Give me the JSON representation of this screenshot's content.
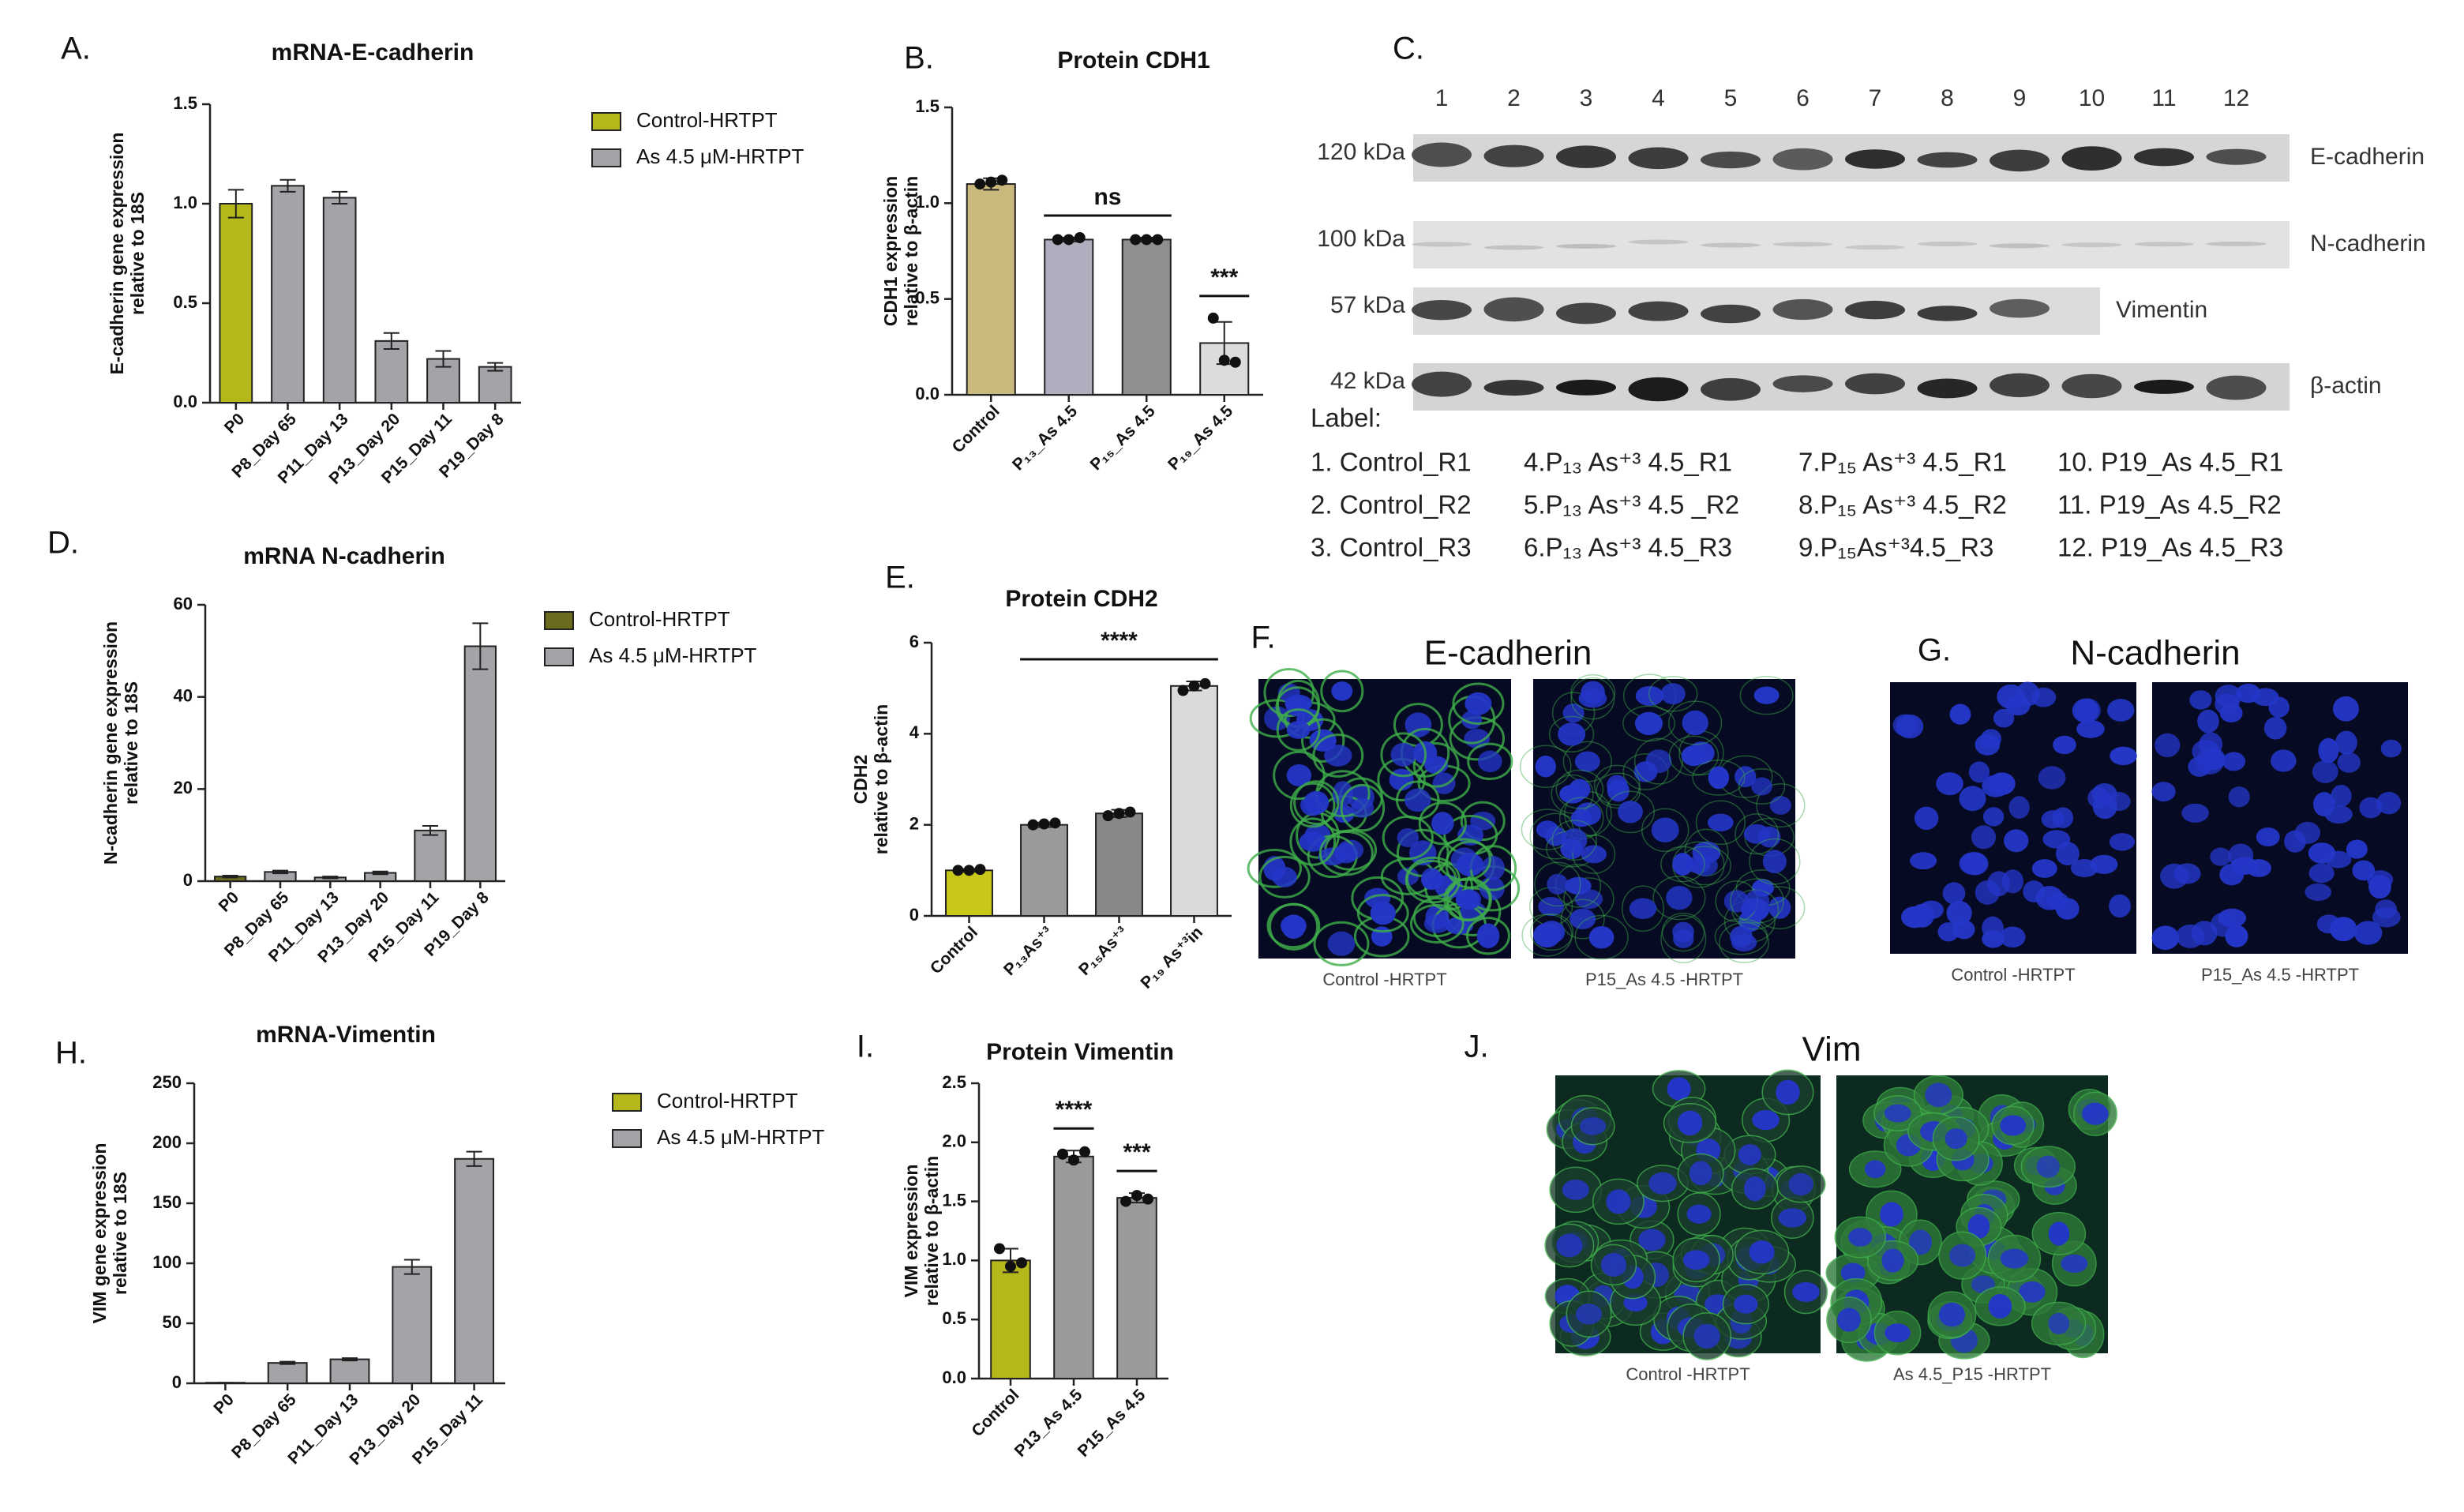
{
  "chart_data": [
    {
      "type": "bar",
      "panel_label": "A.",
      "title": "mRNA-E-cadherin",
      "y_label": [
        "E-cadherin gene expression",
        "relative to 18S"
      ],
      "categories": [
        "P0",
        "P8_Day 65",
        "P11_Day 13",
        "P13_Day 20",
        "P15_Day 11",
        "P19_Day 8"
      ],
      "values": [
        1.0,
        1.09,
        1.03,
        0.31,
        0.22,
        0.18
      ],
      "errors": [
        0.07,
        0.03,
        0.03,
        0.04,
        0.04,
        0.02
      ],
      "colors": [
        "#b5b81a",
        "#a3a3a8",
        "#a3a3a8",
        "#a3a3a8",
        "#a3a3a8",
        "#a3a3a8"
      ],
      "legend": [
        {
          "name": "Control-HRTPT",
          "color": "#b5b81a"
        },
        {
          "name": "As 4.5 μM-HRTPT",
          "color": "#a3a3a8"
        }
      ],
      "ylim": [
        0,
        1.5
      ],
      "yticks": [
        {
          "value": 0,
          "label": "0.0"
        },
        0.5,
        {
          "value": 1,
          "label": "1.0"
        },
        1.5
      ]
    },
    {
      "type": "bar",
      "panel_label": "B.",
      "title": "Protein CDH1",
      "y_label": [
        "CDH1 expression",
        "relative to β-actin"
      ],
      "categories": [
        "Control",
        "P₁₃_As 4.5",
        "P₁₅_As 4.5",
        "P₁₉_As 4.5"
      ],
      "values": [
        1.1,
        0.81,
        0.81,
        0.27
      ],
      "errors": [
        0.03,
        0.01,
        0.01,
        0.11
      ],
      "points": [
        [
          1.1,
          1.11,
          1.12
        ],
        [
          0.81,
          0.81,
          0.82
        ],
        [
          0.81,
          0.81,
          0.81
        ],
        [
          0.4,
          0.18,
          0.17
        ]
      ],
      "colors": [
        "#c9b97c",
        "#aeaebf",
        "#8f8f8f",
        "#dcdcdc"
      ],
      "annotations": [
        {
          "text": "ns",
          "span": [
            1,
            2
          ]
        },
        {
          "text": "***",
          "span": [
            3,
            3
          ]
        }
      ],
      "ylim": [
        0,
        1.5
      ],
      "yticks": [
        {
          "value": 0,
          "label": "0.0"
        },
        0.5,
        {
          "value": 1,
          "label": "1.0"
        },
        1.5
      ]
    },
    {
      "type": "bar",
      "panel_label": "D.",
      "title": "mRNA N-cadherin",
      "y_label": [
        "N-cadherin gene expression",
        "relative to 18S"
      ],
      "categories": [
        "P0",
        "P8_Day 65",
        "P11_Day 13",
        "P13_Day 20",
        "P15_Day 11",
        "P19_Day 8"
      ],
      "values": [
        1,
        2,
        0.8,
        1.8,
        11,
        51
      ],
      "errors": [
        0.2,
        0.3,
        0.2,
        0.3,
        1,
        5
      ],
      "colors": [
        "#6b6b1f",
        "#a3a3a8",
        "#a3a3a8",
        "#a3a3a8",
        "#a3a3a8",
        "#a3a3a8"
      ],
      "legend": [
        {
          "name": "Control-HRTPT",
          "color": "#6b6b1f"
        },
        {
          "name": "As 4.5 μM-HRTPT",
          "color": "#a3a3a8"
        }
      ],
      "ylim": [
        0,
        60
      ],
      "yticks": [
        0,
        20,
        40,
        60
      ]
    },
    {
      "type": "bar",
      "panel_label": "E.",
      "title": "Protein CDH2",
      "y_label": [
        "CDH2",
        "relative to β-actin"
      ],
      "categories": [
        "Control",
        "P₁₃As⁺³",
        "P₁₅As⁺³",
        "P₁₉ As⁺³in"
      ],
      "values": [
        1.0,
        2.0,
        2.25,
        5.05
      ],
      "errors": [
        0.03,
        0.05,
        0.08,
        0.1
      ],
      "points": [
        [
          1.0,
          1.0,
          1.02
        ],
        [
          2.0,
          2.02,
          2.04
        ],
        [
          2.2,
          2.25,
          2.28
        ],
        [
          4.95,
          5.05,
          5.1
        ]
      ],
      "colors": [
        "#c8c81a",
        "#9a9a9a",
        "#888888",
        "#dadada"
      ],
      "annotations": [
        {
          "text": "****",
          "span": [
            1,
            3
          ]
        }
      ],
      "ylim": [
        0,
        6
      ],
      "yticks": [
        0,
        2,
        4,
        6
      ]
    },
    {
      "type": "bar",
      "panel_label": "H.",
      "title": "mRNA-Vimentin",
      "y_label": [
        "VIM gene expression",
        "relative to 18S"
      ],
      "categories": [
        "P0",
        "P8_Day 65",
        "P11_Day 13",
        "P13_Day 20",
        "P15_Day 11"
      ],
      "values": [
        0.5,
        17,
        20,
        97,
        187
      ],
      "errors": [
        0,
        1,
        1,
        6,
        6
      ],
      "colors": [
        "#b5b81a",
        "#a3a3a8",
        "#a3a3a8",
        "#a3a3a8",
        "#a3a3a8"
      ],
      "legend": [
        {
          "name": "Control-HRTPT",
          "color": "#b5b81a"
        },
        {
          "name": "As 4.5 μM-HRTPT",
          "color": "#a3a3a8"
        }
      ],
      "ylim": [
        0,
        250
      ],
      "yticks": [
        0,
        50,
        100,
        150,
        200,
        250
      ]
    },
    {
      "type": "bar",
      "panel_label": "I.",
      "title": "Protein Vimentin",
      "y_label": [
        "VIM expression",
        "relative to β-actin"
      ],
      "categories": [
        "Control",
        "P13_As 4.5",
        "P15_As 4.5"
      ],
      "values": [
        1.0,
        1.88,
        1.53
      ],
      "errors": [
        0.1,
        0.05,
        0.04
      ],
      "points": [
        [
          1.1,
          0.95,
          0.98
        ],
        [
          1.9,
          1.85,
          1.92
        ],
        [
          1.5,
          1.55,
          1.52
        ]
      ],
      "colors": [
        "#b5b81a",
        "#9a9a9a",
        "#9a9a9a"
      ],
      "annotations": [
        {
          "text": "****",
          "span": [
            1,
            1
          ]
        },
        {
          "text": "***",
          "span": [
            2,
            2
          ]
        }
      ],
      "ylim": [
        0,
        2.5
      ],
      "yticks": [
        {
          "value": 0,
          "label": "0.0"
        },
        0.5,
        {
          "value": 1,
          "label": "1.0"
        },
        1.5,
        {
          "value": 2,
          "label": "2.0"
        },
        2.5
      ]
    }
  ],
  "blot": {
    "panel_label": "C.",
    "lanes": [
      "1",
      "2",
      "3",
      "4",
      "5",
      "6",
      "7",
      "8",
      "9",
      "10",
      "11",
      "12"
    ],
    "rows": [
      {
        "size": "120 kDa",
        "protein": "E-cadherin"
      },
      {
        "size": "100 kDa",
        "protein": "N-cadherin"
      },
      {
        "size": "57 kDa",
        "protein": "Vimentin"
      },
      {
        "size": "42 kDa",
        "protein": "β-actin"
      }
    ],
    "label_title": "Label:",
    "label_lines": [
      [
        "1. Control_R1",
        "4.P₁₃ As⁺³ 4.5_R1",
        "7.P₁₅ As⁺³ 4.5_R1",
        "10. P19_As 4.5_R1"
      ],
      [
        "2. Control_R2",
        "5.P₁₃ As⁺³ 4.5 _R2",
        "8.P₁₅ As⁺³ 4.5_R2",
        "11. P19_As 4.5_R2"
      ],
      [
        "3. Control_R3",
        "6.P₁₃ As⁺³ 4.5_R3",
        "9.P₁₅As⁺³4.5_R3",
        "12. P19_As 4.5_R3"
      ]
    ]
  },
  "micrographs": [
    {
      "panel_label": "F.",
      "title": "E-cadherin",
      "captions": [
        "Control -HRTPT",
        "P15_As 4.5 -HRTPT"
      ]
    },
    {
      "panel_label": "G.",
      "title": "N-cadherin",
      "captions": [
        "Control -HRTPT",
        "P15_As 4.5  -HRTPT"
      ]
    },
    {
      "panel_label": "J.",
      "title": "Vim",
      "captions": [
        "Control -HRTPT",
        "As 4.5_P15 -HRTPT"
      ]
    }
  ]
}
